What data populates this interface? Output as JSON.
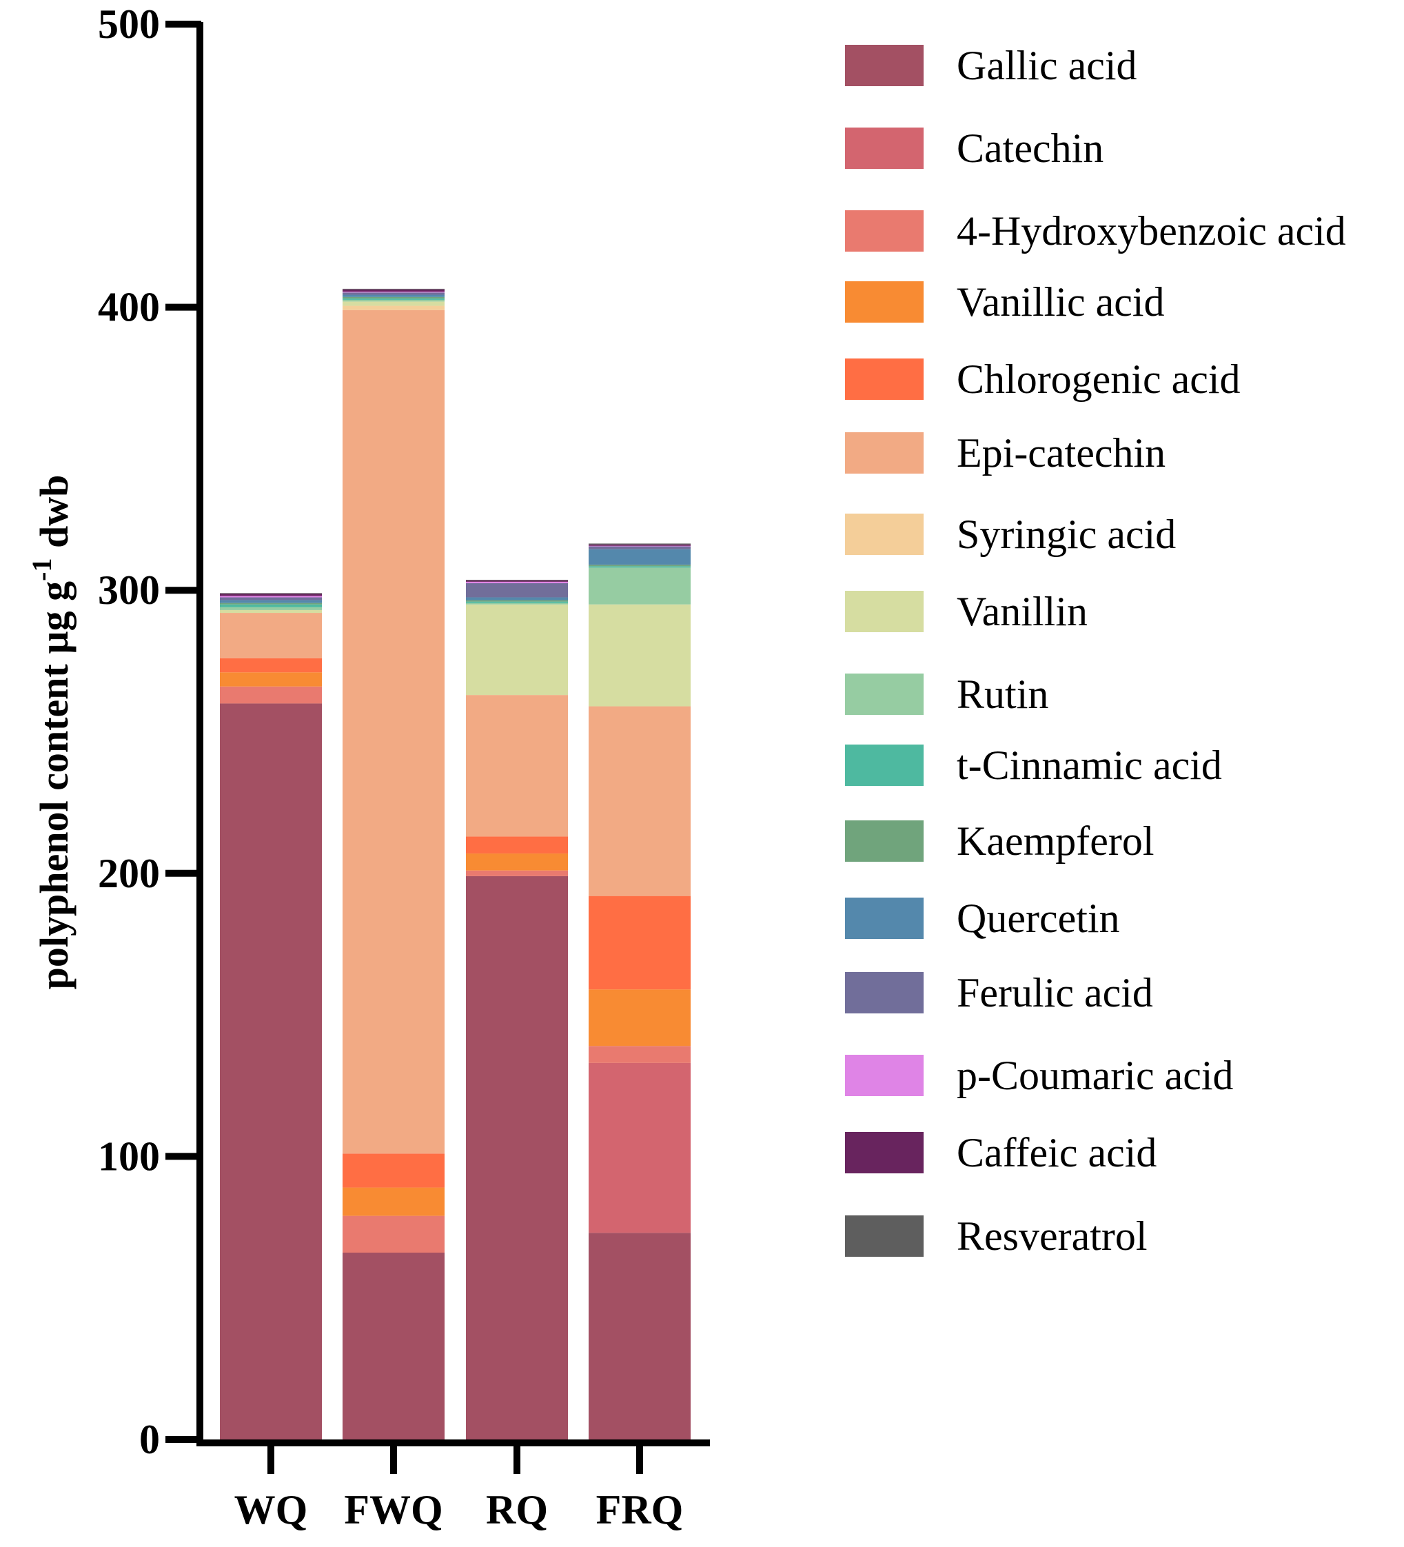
{
  "chart_data": {
    "type": "bar",
    "stacked": true,
    "title": "",
    "xlabel": "",
    "ylabel": "polyphenol content µg g",
    "ylabel_sup": "-1",
    "ylabel_suffix": " dwb",
    "ylim": [
      0,
      500
    ],
    "yticks": [
      "0",
      "100",
      "200",
      "300",
      "400",
      "500"
    ],
    "grid": false,
    "legend_position": "right",
    "categories": [
      "WQ",
      "FWQ",
      "RQ",
      "FRQ"
    ],
    "series": [
      {
        "name": "Gallic acid",
        "color": "#A35063",
        "values": [
          260,
          66,
          199,
          73
        ]
      },
      {
        "name": "Catechin",
        "color": "#D3656F",
        "values": [
          0,
          0,
          0,
          60
        ]
      },
      {
        "name": "4-Hydroxybenzoic acid",
        "color": "#E97A6F",
        "values": [
          6,
          13,
          2,
          6
        ]
      },
      {
        "name": "Vanillic acid",
        "color": "#F88B33",
        "values": [
          5,
          10,
          6,
          20
        ]
      },
      {
        "name": "Chlorogenic acid",
        "color": "#FF6E44",
        "values": [
          5,
          12,
          6,
          33
        ]
      },
      {
        "name": "Epi-catechin",
        "color": "#F2AA84",
        "values": [
          16,
          298,
          50,
          67
        ]
      },
      {
        "name": "Syringic acid",
        "color": "#F4CE99",
        "values": [
          0,
          1.5,
          0,
          0
        ]
      },
      {
        "name": "Vanillin",
        "color": "#D6DDA1",
        "values": [
          1,
          1.5,
          32,
          36
        ]
      },
      {
        "name": "Rutin",
        "color": "#96CCA2",
        "values": [
          1,
          0.6,
          0.5,
          13
        ]
      },
      {
        "name": "t-Cinnamic acid",
        "color": "#4EB9A0",
        "values": [
          1,
          0.5,
          0.5,
          0.5
        ]
      },
      {
        "name": "Kaempferol",
        "color": "#70A47C",
        "values": [
          0.5,
          0.5,
          0.5,
          0.5
        ]
      },
      {
        "name": "Quercetin",
        "color": "#5488AC",
        "values": [
          1,
          0.8,
          1,
          5.5
        ]
      },
      {
        "name": "Ferulic acid",
        "color": "#716E9A",
        "values": [
          1,
          0.8,
          5,
          1
        ]
      },
      {
        "name": "p-Coumaric acid",
        "color": "#DF84E6",
        "values": [
          0.5,
          0.3,
          0.5,
          0.2
        ]
      },
      {
        "name": "Caffeic acid",
        "color": "#68245E",
        "values": [
          0.8,
          0.8,
          0.5,
          0.5
        ]
      },
      {
        "name": "Resveratrol",
        "color": "#5E5E5E",
        "values": [
          0.2,
          0.2,
          0.2,
          0.3
        ]
      }
    ]
  }
}
